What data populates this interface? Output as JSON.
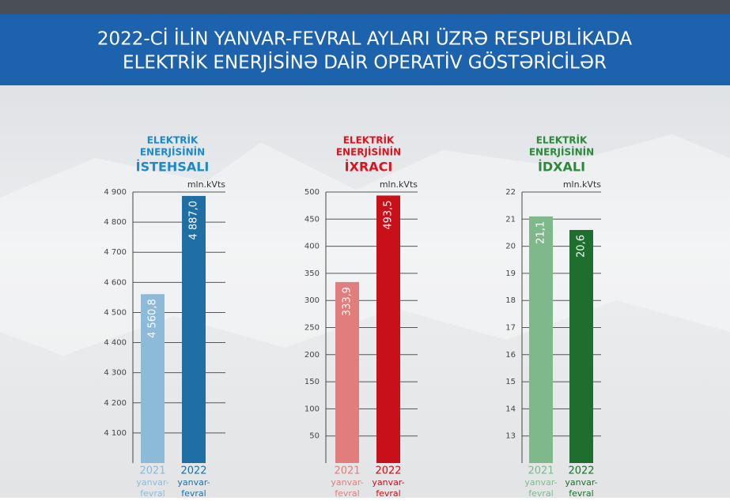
{
  "header": {
    "title": [
      "2022-Cİ İLİN YANVAR-FEVRAL AYLARI ÜZRƏ RESPUBLİKADA",
      "ELEKTRİK ENERJİSİNƏ DAİR OPERATİV GÖSTƏRİCİLƏR"
    ]
  },
  "chart_data": [
    {
      "type": "bar",
      "title": [
        "ELEKTRİK",
        "ENERJİSİNİN",
        "İSTEHSALI"
      ],
      "title_color": "#1b8ac6",
      "unit": "mln.kVts",
      "categories": [
        [
          "2021",
          "yanvar-",
          "fevral"
        ],
        [
          "2022",
          "yanvar-",
          "fevral"
        ]
      ],
      "values": [
        4560.8,
        4887.0
      ],
      "value_labels": [
        "4 560,8",
        "4 887,0"
      ],
      "colors": [
        "#8cbad8",
        "#1f6fa5"
      ],
      "ylim": [
        4000,
        4900
      ],
      "yticks": [
        {
          "value": 4100,
          "label": "4 100"
        },
        {
          "value": 4200,
          "label": "4 200"
        },
        {
          "value": 4300,
          "label": "4 300"
        },
        {
          "value": 4400,
          "label": "4 400"
        },
        {
          "value": 4500,
          "label": "4 500"
        },
        {
          "value": 4600,
          "label": "4 600"
        },
        {
          "value": 4700,
          "label": "4 700"
        },
        {
          "value": 4800,
          "label": "4 800"
        },
        {
          "value": 4900,
          "label": "4 900"
        }
      ],
      "grid": true
    },
    {
      "type": "bar",
      "title": [
        "ELEKTRİK",
        "ENERJİSİNİN",
        "İXRACI"
      ],
      "title_color": "#d8151f",
      "unit": "mln.kVts",
      "categories": [
        [
          "2021",
          "yanvar-",
          "fevral"
        ],
        [
          "2022",
          "yanvar-",
          "fevral"
        ]
      ],
      "values": [
        333.9,
        493.5
      ],
      "value_labels": [
        "333,9",
        "493,5"
      ],
      "colors": [
        "#e27d7d",
        "#c8101a"
      ],
      "ylim": [
        0,
        500
      ],
      "yticks": [
        50,
        100,
        150,
        200,
        250,
        300,
        350,
        400,
        450,
        500
      ],
      "grid": true
    },
    {
      "type": "bar",
      "title": [
        "ELEKTRİK",
        "ENERJİSİNİN",
        "İDXALI"
      ],
      "title_color": "#2a8a3a",
      "unit": "mln.kVts",
      "categories": [
        [
          "2021",
          "yanvar-",
          "fevral"
        ],
        [
          "2022",
          "yanvar-",
          "fevral"
        ]
      ],
      "values": [
        21.1,
        20.6
      ],
      "value_labels": [
        "21,1",
        "20,6"
      ],
      "colors": [
        "#7fb98b",
        "#1e6e2e"
      ],
      "ylim": [
        12,
        22
      ],
      "yticks": [
        13,
        14,
        15,
        16,
        17,
        18,
        19,
        20,
        21,
        22
      ],
      "grid": true
    }
  ]
}
